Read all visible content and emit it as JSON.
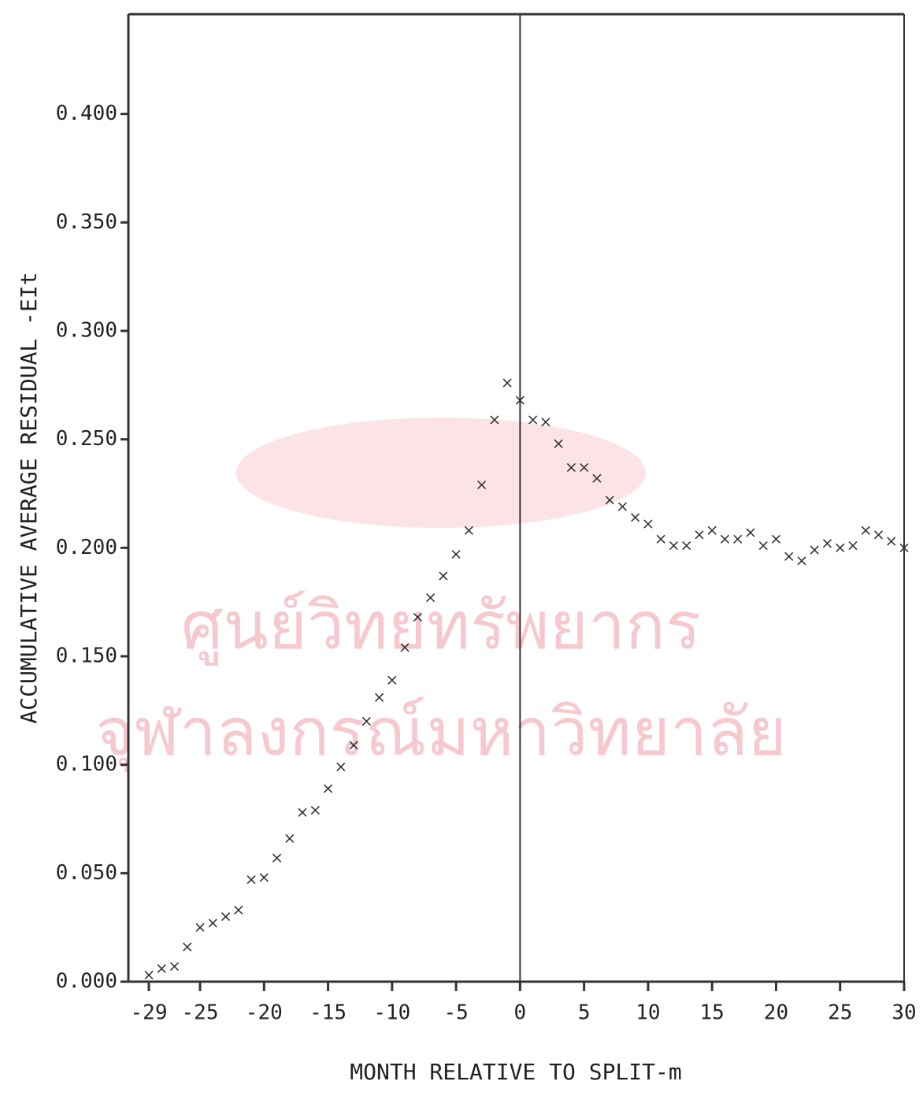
{
  "chart_data": {
    "type": "scatter",
    "x_label": "MONTH RELATIVE TO SPLIT-m",
    "y_label": "ACCUMULATIVE AVERAGE RESIDUAL -EIt",
    "watermark": [
      "ศูนย์วิทยทรัพยากร",
      "จุฬาลงกรณ์มหาวิทยาลัย"
    ],
    "marker": "x",
    "color": "#333333",
    "xlim": [
      -30.6,
      30
    ],
    "ylim": [
      0,
      0.446
    ],
    "xticks": [
      -29,
      -25,
      -20,
      -15,
      -10,
      -5,
      0,
      5,
      10,
      15,
      20,
      25,
      30
    ],
    "yticks": [
      {
        "value": 0,
        "label": "0.000"
      },
      {
        "value": 0.05,
        "label": "0.050"
      },
      {
        "value": 0.1,
        "label": "0.100"
      },
      {
        "value": 0.15,
        "label": "0.150"
      },
      {
        "value": 0.2,
        "label": "0.200"
      },
      {
        "value": 0.25,
        "label": "0.250"
      },
      {
        "value": 0.3,
        "label": "0.300"
      },
      {
        "value": 0.35,
        "label": "0.350"
      },
      {
        "value": 0.4,
        "label": "0.400"
      }
    ],
    "vlines": [
      0
    ],
    "x": [
      -29,
      -28,
      -27,
      -26,
      -25,
      -24,
      -23,
      -22,
      -21,
      -20,
      -19,
      -18,
      -17,
      -16,
      -15,
      -14,
      -13,
      -12,
      -11,
      -10,
      -9,
      -8,
      -7,
      -6,
      -5,
      -4,
      -3,
      -2,
      -1,
      0,
      1,
      2,
      3,
      4,
      5,
      6,
      7,
      8,
      9,
      10,
      11,
      12,
      13,
      14,
      15,
      16,
      17,
      18,
      19,
      20,
      21,
      22,
      23,
      24,
      25,
      26,
      27,
      28,
      29,
      30
    ],
    "values": [
      0.003,
      0.006,
      0.007,
      0.016,
      0.025,
      0.027,
      0.03,
      0.033,
      0.047,
      0.048,
      0.057,
      0.066,
      0.078,
      0.079,
      0.089,
      0.099,
      0.109,
      0.12,
      0.131,
      0.139,
      0.154,
      0.168,
      0.177,
      0.187,
      0.197,
      0.208,
      0.229,
      0.259,
      0.276,
      0.268,
      0.259,
      0.258,
      0.248,
      0.237,
      0.237,
      0.232,
      0.222,
      0.219,
      0.214,
      0.211,
      0.204,
      0.201,
      0.201,
      0.206,
      0.208,
      0.204,
      0.204,
      0.207,
      0.201,
      0.204,
      0.196,
      0.194,
      0.199,
      0.202,
      0.2,
      0.201,
      0.208,
      0.206,
      0.203,
      0.2
    ]
  }
}
